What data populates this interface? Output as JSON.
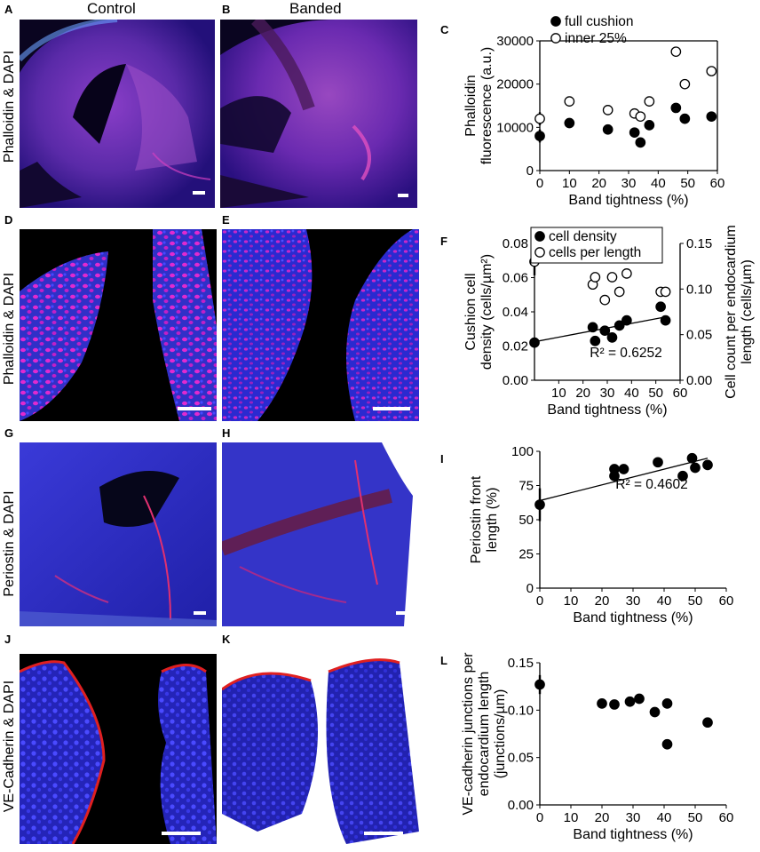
{
  "column_titles": {
    "control": "Control",
    "banded": "Banded"
  },
  "row_labels": {
    "row1": "Phalloidin & DAPI",
    "row2": "Phalloidin & DAPI",
    "row3": "Periostin & DAPI",
    "row4": "VE-Cadherin & DAPI"
  },
  "panel_letters": [
    "A",
    "B",
    "C",
    "D",
    "E",
    "F",
    "G",
    "H",
    "I",
    "J",
    "K",
    "L"
  ],
  "colors": {
    "blue": "#2a2ad8",
    "magenta": "#d01ec0",
    "red": "#e0202a",
    "black": "#000000"
  },
  "chart_data": [
    {
      "panel": "C",
      "type": "scatter",
      "xlabel": "Band tightness (%)",
      "ylabel": "Phalloidin fluorescence (a.u.)",
      "ylabel_lines": [
        "Phalloidin",
        "fluorescence (a.u.)"
      ],
      "xlim": [
        0,
        60
      ],
      "ylim": [
        0,
        30000
      ],
      "xticks": [
        0,
        10,
        20,
        30,
        40,
        50,
        60
      ],
      "yticks": [
        0,
        10000,
        20000,
        30000
      ],
      "legend_position": "top",
      "series": [
        {
          "name": "full cushion",
          "marker": "filled",
          "x": [
            0,
            10,
            23,
            32,
            34,
            37,
            46,
            49,
            58
          ],
          "y": [
            8000,
            11000,
            9500,
            8800,
            6500,
            10500,
            14500,
            12000,
            12500
          ],
          "control_error": 1500
        },
        {
          "name": "inner 25%",
          "marker": "open",
          "x": [
            0,
            10,
            23,
            32,
            34,
            37,
            46,
            49,
            58
          ],
          "y": [
            12000,
            16000,
            14000,
            13200,
            12500,
            16000,
            27500,
            20000,
            23000
          ],
          "control_error": 1500
        }
      ]
    },
    {
      "panel": "F",
      "type": "scatter",
      "xlabel": "Band tightness (%)",
      "ylabel": "Cushion cell density (cells/µm²)",
      "ylabel_lines": [
        "Cushion cell",
        "density (cells/µm²)"
      ],
      "y2label": "Cell count per endocardium length (cells/µm)",
      "y2label_lines": [
        "Cell count per endocardium",
        "length (cells/µm)"
      ],
      "xlim": [
        0,
        60
      ],
      "ylim": [
        0,
        0.08
      ],
      "y2lim": [
        0,
        0.15
      ],
      "xticks": [
        10,
        20,
        30,
        40,
        50,
        60
      ],
      "yticks": [
        0.0,
        0.02,
        0.04,
        0.06,
        0.08
      ],
      "y2ticks": [
        0.0,
        0.05,
        0.1,
        0.15
      ],
      "annotation": "R² = 0.6252",
      "legend_position": "top-right",
      "series": [
        {
          "name": "cell density",
          "marker": "filled",
          "axis": "left",
          "x": [
            0,
            24,
            25,
            29,
            32,
            35,
            38,
            52,
            54
          ],
          "y": [
            0.022,
            0.031,
            0.023,
            0.029,
            0.025,
            0.032,
            0.035,
            0.043,
            0.035
          ],
          "control_error": 0.003,
          "trendline": [
            [
              0,
              0.0225
            ],
            [
              54,
              0.037
            ]
          ]
        },
        {
          "name": "cells per length",
          "marker": "open",
          "axis": "right",
          "x": [
            0,
            24,
            25,
            29,
            32,
            35,
            38,
            52,
            54
          ],
          "y": [
            0.13,
            0.105,
            0.113,
            0.088,
            0.113,
            0.097,
            0.117,
            0.097,
            0.097
          ],
          "control_error": 0.015
        }
      ]
    },
    {
      "panel": "I",
      "type": "scatter",
      "xlabel": "Band tightness (%)",
      "ylabel": "Periostin front length (%)",
      "ylabel_lines": [
        "Periostin front",
        "length (%)"
      ],
      "xlim": [
        0,
        60
      ],
      "ylim": [
        0,
        100
      ],
      "xticks": [
        0,
        10,
        20,
        30,
        40,
        50,
        60
      ],
      "yticks": [
        0,
        25,
        50,
        75,
        100
      ],
      "annotation": "R² = 0.4602",
      "series": [
        {
          "marker": "filled",
          "x": [
            0,
            24,
            24,
            27,
            38,
            46,
            49,
            50,
            54
          ],
          "y": [
            61,
            82,
            87,
            87,
            92,
            82,
            95,
            88,
            90
          ],
          "control_error": 12,
          "trendline": [
            [
              0,
              64
            ],
            [
              54,
              95
            ]
          ]
        }
      ]
    },
    {
      "panel": "L",
      "type": "scatter",
      "xlabel": "Band tightness (%)",
      "ylabel": "VE-cadherin junctions per endocardium length (junctions/µm)",
      "ylabel_lines": [
        "VE-cadherin junctions per",
        "endocardium length",
        "(junctions/µm)"
      ],
      "xlim": [
        0,
        60
      ],
      "ylim": [
        0,
        0.15
      ],
      "xticks": [
        0,
        10,
        20,
        30,
        40,
        50,
        60
      ],
      "yticks": [
        0.0,
        0.05,
        0.1,
        0.15
      ],
      "series": [
        {
          "marker": "filled",
          "x": [
            0,
            20,
            24,
            29,
            32,
            37,
            41,
            41,
            54
          ],
          "y": [
            0.127,
            0.107,
            0.106,
            0.109,
            0.112,
            0.098,
            0.107,
            0.064,
            0.087
          ],
          "control_error": 0.01
        }
      ]
    }
  ]
}
